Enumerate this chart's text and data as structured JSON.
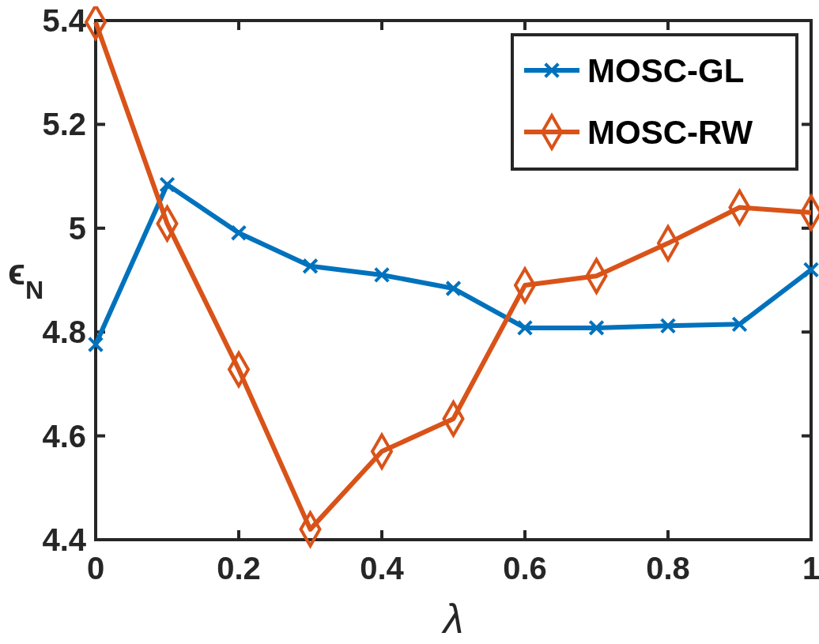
{
  "chart_data": {
    "type": "line",
    "xlabel": "λ",
    "ylabel": "ϵ$_{N}$",
    "x": [
      0,
      0.1,
      0.2,
      0.3,
      0.4,
      0.5,
      0.6,
      0.7,
      0.8,
      0.9,
      1
    ],
    "xlim": [
      0,
      1
    ],
    "xticks": [
      0,
      {
        "value": 0.2,
        "label": "0.2"
      },
      {
        "value": 0.4,
        "label": "0.4"
      },
      {
        "value": 0.6,
        "label": "0.6"
      },
      {
        "value": 0.8,
        "label": "0.8"
      },
      1
    ],
    "ylim": [
      4.4,
      5.4
    ],
    "yticks": [
      4.4,
      4.6,
      4.8,
      {
        "value": 5,
        "label": "5"
      },
      5.2,
      5.4
    ],
    "legend": "top right",
    "line_style": "solid",
    "series": [
      {
        "name": "MOSC-GL",
        "color": "#0072bd",
        "marker": "cross",
        "values": [
          4.776,
          5.084,
          4.991,
          4.927,
          4.91,
          4.884,
          4.808,
          4.808,
          4.812,
          4.815,
          4.92
        ]
      },
      {
        "name": "MOSC-RW",
        "color": "#d95319",
        "marker": "diamond",
        "values": [
          5.397,
          5.009,
          4.728,
          4.42,
          4.57,
          4.633,
          4.89,
          4.908,
          4.971,
          5.04,
          5.03
        ]
      }
    ]
  }
}
